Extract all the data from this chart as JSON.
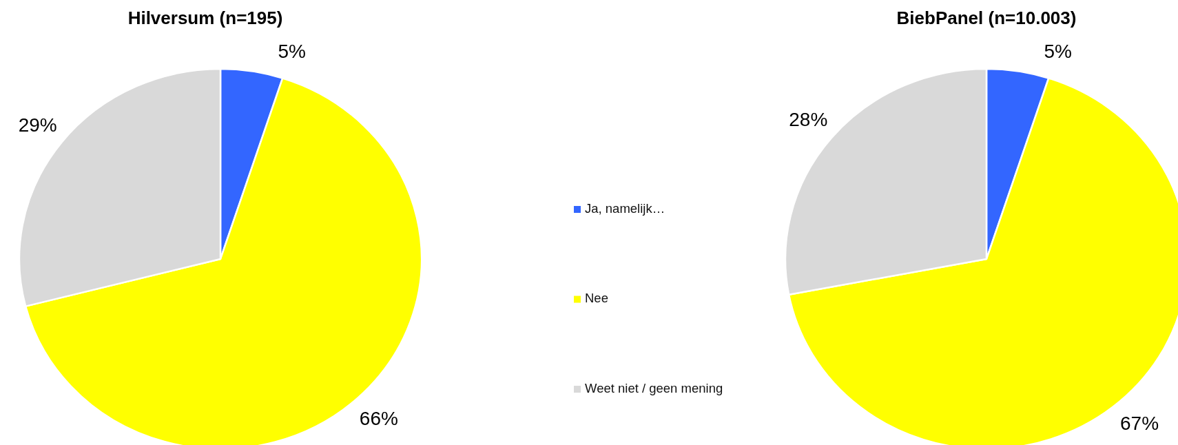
{
  "chart_data": {
    "type": "pie",
    "categories": [
      "Ja, namelijk…",
      "Nee",
      "Weet niet / geen mening"
    ],
    "colors": [
      "#3366ff",
      "#ffff00",
      "#d9d9d9"
    ],
    "legend": "center",
    "series": [
      {
        "name": "Hilversum (n=195)",
        "values": [
          5,
          66,
          29
        ],
        "value_labels": [
          "5%",
          "66%",
          "29%"
        ]
      },
      {
        "name": "BiebPanel (n=10.003)",
        "values": [
          5,
          67,
          28
        ],
        "value_labels": [
          "5%",
          "67%",
          "28%"
        ]
      }
    ]
  }
}
